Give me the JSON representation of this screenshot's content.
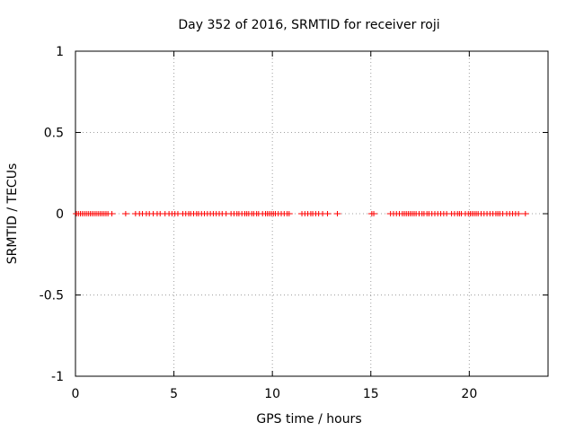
{
  "chart_data": {
    "type": "scatter",
    "title": "Day 352 of 2016, SRMTID for receiver roji",
    "xlabel": "GPS time / hours",
    "ylabel": "SRMTID / TECUs",
    "xlim": [
      0,
      24
    ],
    "ylim": [
      -1,
      1
    ],
    "xticks": [
      0,
      5,
      10,
      15,
      20
    ],
    "xtick_labels": [
      "0",
      "5",
      "10",
      "15",
      "20"
    ],
    "yticks": [
      1,
      0.5,
      0,
      -0.5,
      -1
    ],
    "ytick_labels": [
      "1",
      "0.5",
      "0",
      "-0.5",
      "-1"
    ],
    "grid": true,
    "marker": "+",
    "series": [
      {
        "name": "SRMTID",
        "color": "#ff0000",
        "x": [
          0.05,
          0.15,
          0.25,
          0.35,
          0.45,
          0.55,
          0.65,
          0.75,
          0.85,
          0.95,
          1.05,
          1.15,
          1.25,
          1.35,
          1.45,
          1.55,
          1.65,
          1.85,
          2.55,
          3.05,
          3.25,
          3.4,
          3.6,
          3.75,
          3.95,
          4.15,
          4.3,
          4.55,
          4.75,
          4.9,
          5.05,
          5.2,
          5.45,
          5.6,
          5.75,
          5.85,
          6.0,
          6.15,
          6.25,
          6.4,
          6.55,
          6.7,
          6.85,
          7.0,
          7.15,
          7.3,
          7.45,
          7.65,
          7.9,
          8.05,
          8.2,
          8.3,
          8.45,
          8.6,
          8.7,
          8.8,
          8.95,
          9.05,
          9.2,
          9.3,
          9.5,
          9.65,
          9.75,
          9.85,
          9.95,
          10.05,
          10.15,
          10.3,
          10.45,
          10.6,
          10.75,
          10.85,
          11.5,
          11.65,
          11.8,
          11.95,
          12.05,
          12.2,
          12.35,
          12.55,
          12.8,
          13.3,
          15.05,
          15.15,
          16.0,
          16.15,
          16.3,
          16.45,
          16.6,
          16.7,
          16.8,
          16.9,
          17.0,
          17.1,
          17.2,
          17.3,
          17.45,
          17.6,
          17.7,
          17.85,
          17.95,
          18.1,
          18.25,
          18.4,
          18.55,
          18.7,
          18.85,
          19.1,
          19.25,
          19.4,
          19.5,
          19.6,
          19.8,
          19.95,
          20.05,
          20.15,
          20.25,
          20.35,
          20.45,
          20.6,
          20.75,
          20.9,
          21.05,
          21.2,
          21.35,
          21.45,
          21.55,
          21.7,
          21.9,
          22.05,
          22.2,
          22.35,
          22.5,
          22.85
        ],
        "y": [
          0,
          0,
          0,
          0,
          0,
          0,
          0,
          0,
          0,
          0,
          0,
          0,
          0,
          0,
          0,
          0,
          0,
          0,
          0,
          0,
          0,
          0,
          0,
          0,
          0,
          0,
          0,
          0,
          0,
          0,
          0,
          0,
          0,
          0,
          0,
          0,
          0,
          0,
          0,
          0,
          0,
          0,
          0,
          0,
          0,
          0,
          0,
          0,
          0,
          0,
          0,
          0,
          0,
          0,
          0,
          0,
          0,
          0,
          0,
          0,
          0,
          0,
          0,
          0,
          0,
          0,
          0,
          0,
          0,
          0,
          0,
          0,
          0,
          0,
          0,
          0,
          0,
          0,
          0,
          0,
          0,
          0,
          0,
          0,
          0,
          0,
          0,
          0,
          0,
          0,
          0,
          0,
          0,
          0,
          0,
          0,
          0,
          0,
          0,
          0,
          0,
          0,
          0,
          0,
          0,
          0,
          0,
          0,
          0,
          0,
          0,
          0,
          0,
          0,
          0,
          0,
          0,
          0,
          0,
          0,
          0,
          0,
          0,
          0,
          0,
          0,
          0,
          0,
          0,
          0,
          0,
          0,
          0,
          0
        ]
      }
    ]
  }
}
